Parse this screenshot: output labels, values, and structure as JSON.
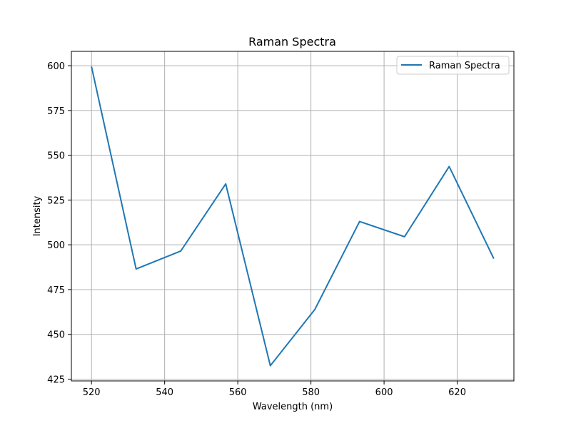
{
  "chart_data": {
    "type": "line",
    "title": "Raman Spectra",
    "xlabel": "Wavelength (nm)",
    "ylabel": "Intensity",
    "xlim": [
      514.5,
      635.5
    ],
    "ylim": [
      424,
      608
    ],
    "xticks": [
      520,
      540,
      560,
      580,
      600,
      620
    ],
    "yticks": [
      425,
      450,
      475,
      500,
      525,
      550,
      575,
      600
    ],
    "grid": true,
    "legend_position": "top-right",
    "series": [
      {
        "name": "Raman Spectra",
        "color": "#1f77b4",
        "x": [
          520,
          532.2,
          544.4,
          556.7,
          568.9,
          581.1,
          593.3,
          605.6,
          617.8,
          630
        ],
        "y": [
          599.5,
          486.5,
          496.5,
          534,
          432.5,
          464,
          513,
          504.5,
          543.7,
          492.3
        ]
      }
    ]
  }
}
